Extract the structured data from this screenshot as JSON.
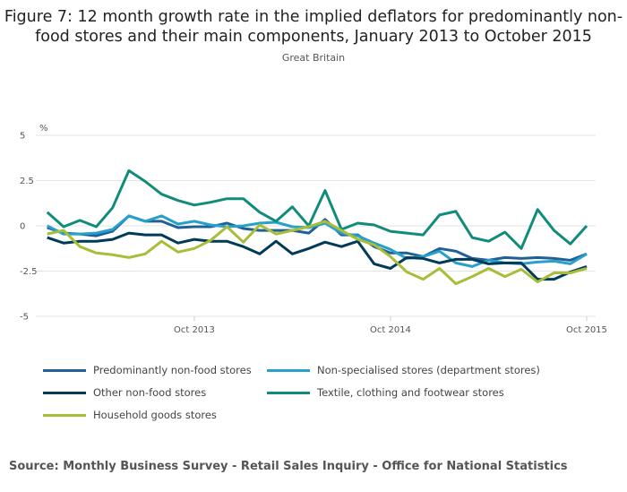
{
  "title": "Figure 7: 12 month growth rate in the implied deflators for predominantly non-food stores and their main components, January 2013 to October 2015",
  "subtitle": "Great Britain",
  "source": "Source: Monthly Business Survey - Retail Sales Inquiry - Office for National Statistics",
  "chart_data": {
    "type": "line",
    "title": "Figure 7: 12 month growth rate in the implied deflators for predominantly non-food stores and their main components, January 2013 to October 2015",
    "ylabel": "%",
    "ylim": [
      -5,
      5
    ],
    "yticks": [
      "5",
      "2.5",
      "0",
      "-2.5",
      "-5"
    ],
    "ytick_values": [
      5,
      2.5,
      0,
      -2.5,
      -5
    ],
    "x_start": "Jan 2013",
    "x_end": "Oct 2015",
    "xtick_labels": [
      "Oct 2013",
      "Oct 2014",
      "Oct 2015"
    ],
    "grid": "horizontal",
    "legend_position": "bottom",
    "series": [
      {
        "name": "Predominantly non-food stores",
        "color": "#206095",
        "values": [
          -0.1,
          -0.4,
          -0.45,
          -0.55,
          -0.3,
          0.55,
          0.25,
          0.25,
          -0.1,
          -0.05,
          -0.05,
          0.15,
          -0.15,
          -0.25,
          -0.25,
          -0.25,
          -0.4,
          0.35,
          -0.5,
          -0.5,
          -1.15,
          -1.5,
          -1.5,
          -1.7,
          -1.25,
          -1.4,
          -1.8,
          -1.9,
          -1.75,
          -1.8,
          -1.75,
          -1.8,
          -1.9,
          -1.55
        ]
      },
      {
        "name": "Non-specialised stores (department stores)",
        "color": "#27a0cc",
        "values": [
          0,
          -0.45,
          -0.45,
          -0.4,
          -0.2,
          0.55,
          0.25,
          0.55,
          0.1,
          0.25,
          0.05,
          -0.05,
          0,
          0.15,
          0.2,
          -0.05,
          -0.1,
          0.15,
          -0.4,
          -0.55,
          -0.95,
          -1.3,
          -1.8,
          -1.7,
          -1.4,
          -2.05,
          -2.25,
          -1.9,
          -2.05,
          -2.1,
          -2.0,
          -1.95,
          -2.1,
          -1.55
        ]
      },
      {
        "name": "Other non-food stores",
        "color": "#003c57",
        "values": [
          -0.65,
          -0.95,
          -0.85,
          -0.85,
          -0.75,
          -0.4,
          -0.5,
          -0.5,
          -0.95,
          -0.75,
          -0.85,
          -0.85,
          -1.15,
          -1.55,
          -0.85,
          -1.55,
          -1.25,
          -0.9,
          -1.15,
          -0.85,
          -2.1,
          -2.35,
          -1.75,
          -1.8,
          -2.05,
          -1.85,
          -1.85,
          -2.1,
          -2.05,
          -2.05,
          -2.95,
          -2.95,
          -2.55,
          -2.25
        ]
      },
      {
        "name": "Textile, clothing and footwear stores",
        "color": "#118c7b",
        "values": [
          0.75,
          -0.05,
          0.3,
          -0.05,
          1.0,
          3.05,
          2.45,
          1.75,
          1.4,
          1.15,
          1.3,
          1.5,
          1.5,
          0.75,
          0.25,
          1.05,
          0,
          1.95,
          -0.2,
          0.15,
          0.05,
          -0.3,
          -0.4,
          -0.5,
          0.6,
          0.8,
          -0.65,
          -0.85,
          -0.35,
          -1.25,
          0.9,
          -0.25,
          -1.0,
          0
        ]
      },
      {
        "name": "Household goods stores",
        "color": "#a8bd3a",
        "values": [
          -0.45,
          -0.25,
          -1.15,
          -1.5,
          -1.6,
          -1.75,
          -1.55,
          -0.85,
          -1.45,
          -1.25,
          -0.8,
          -0.05,
          -0.9,
          0.05,
          -0.45,
          -0.25,
          -0.05,
          0.25,
          -0.25,
          -0.75,
          -1.05,
          -1.7,
          -2.55,
          -2.95,
          -2.35,
          -3.2,
          -2.8,
          -2.35,
          -2.8,
          -2.4,
          -3.1,
          -2.6,
          -2.6,
          -2.35
        ]
      }
    ]
  }
}
